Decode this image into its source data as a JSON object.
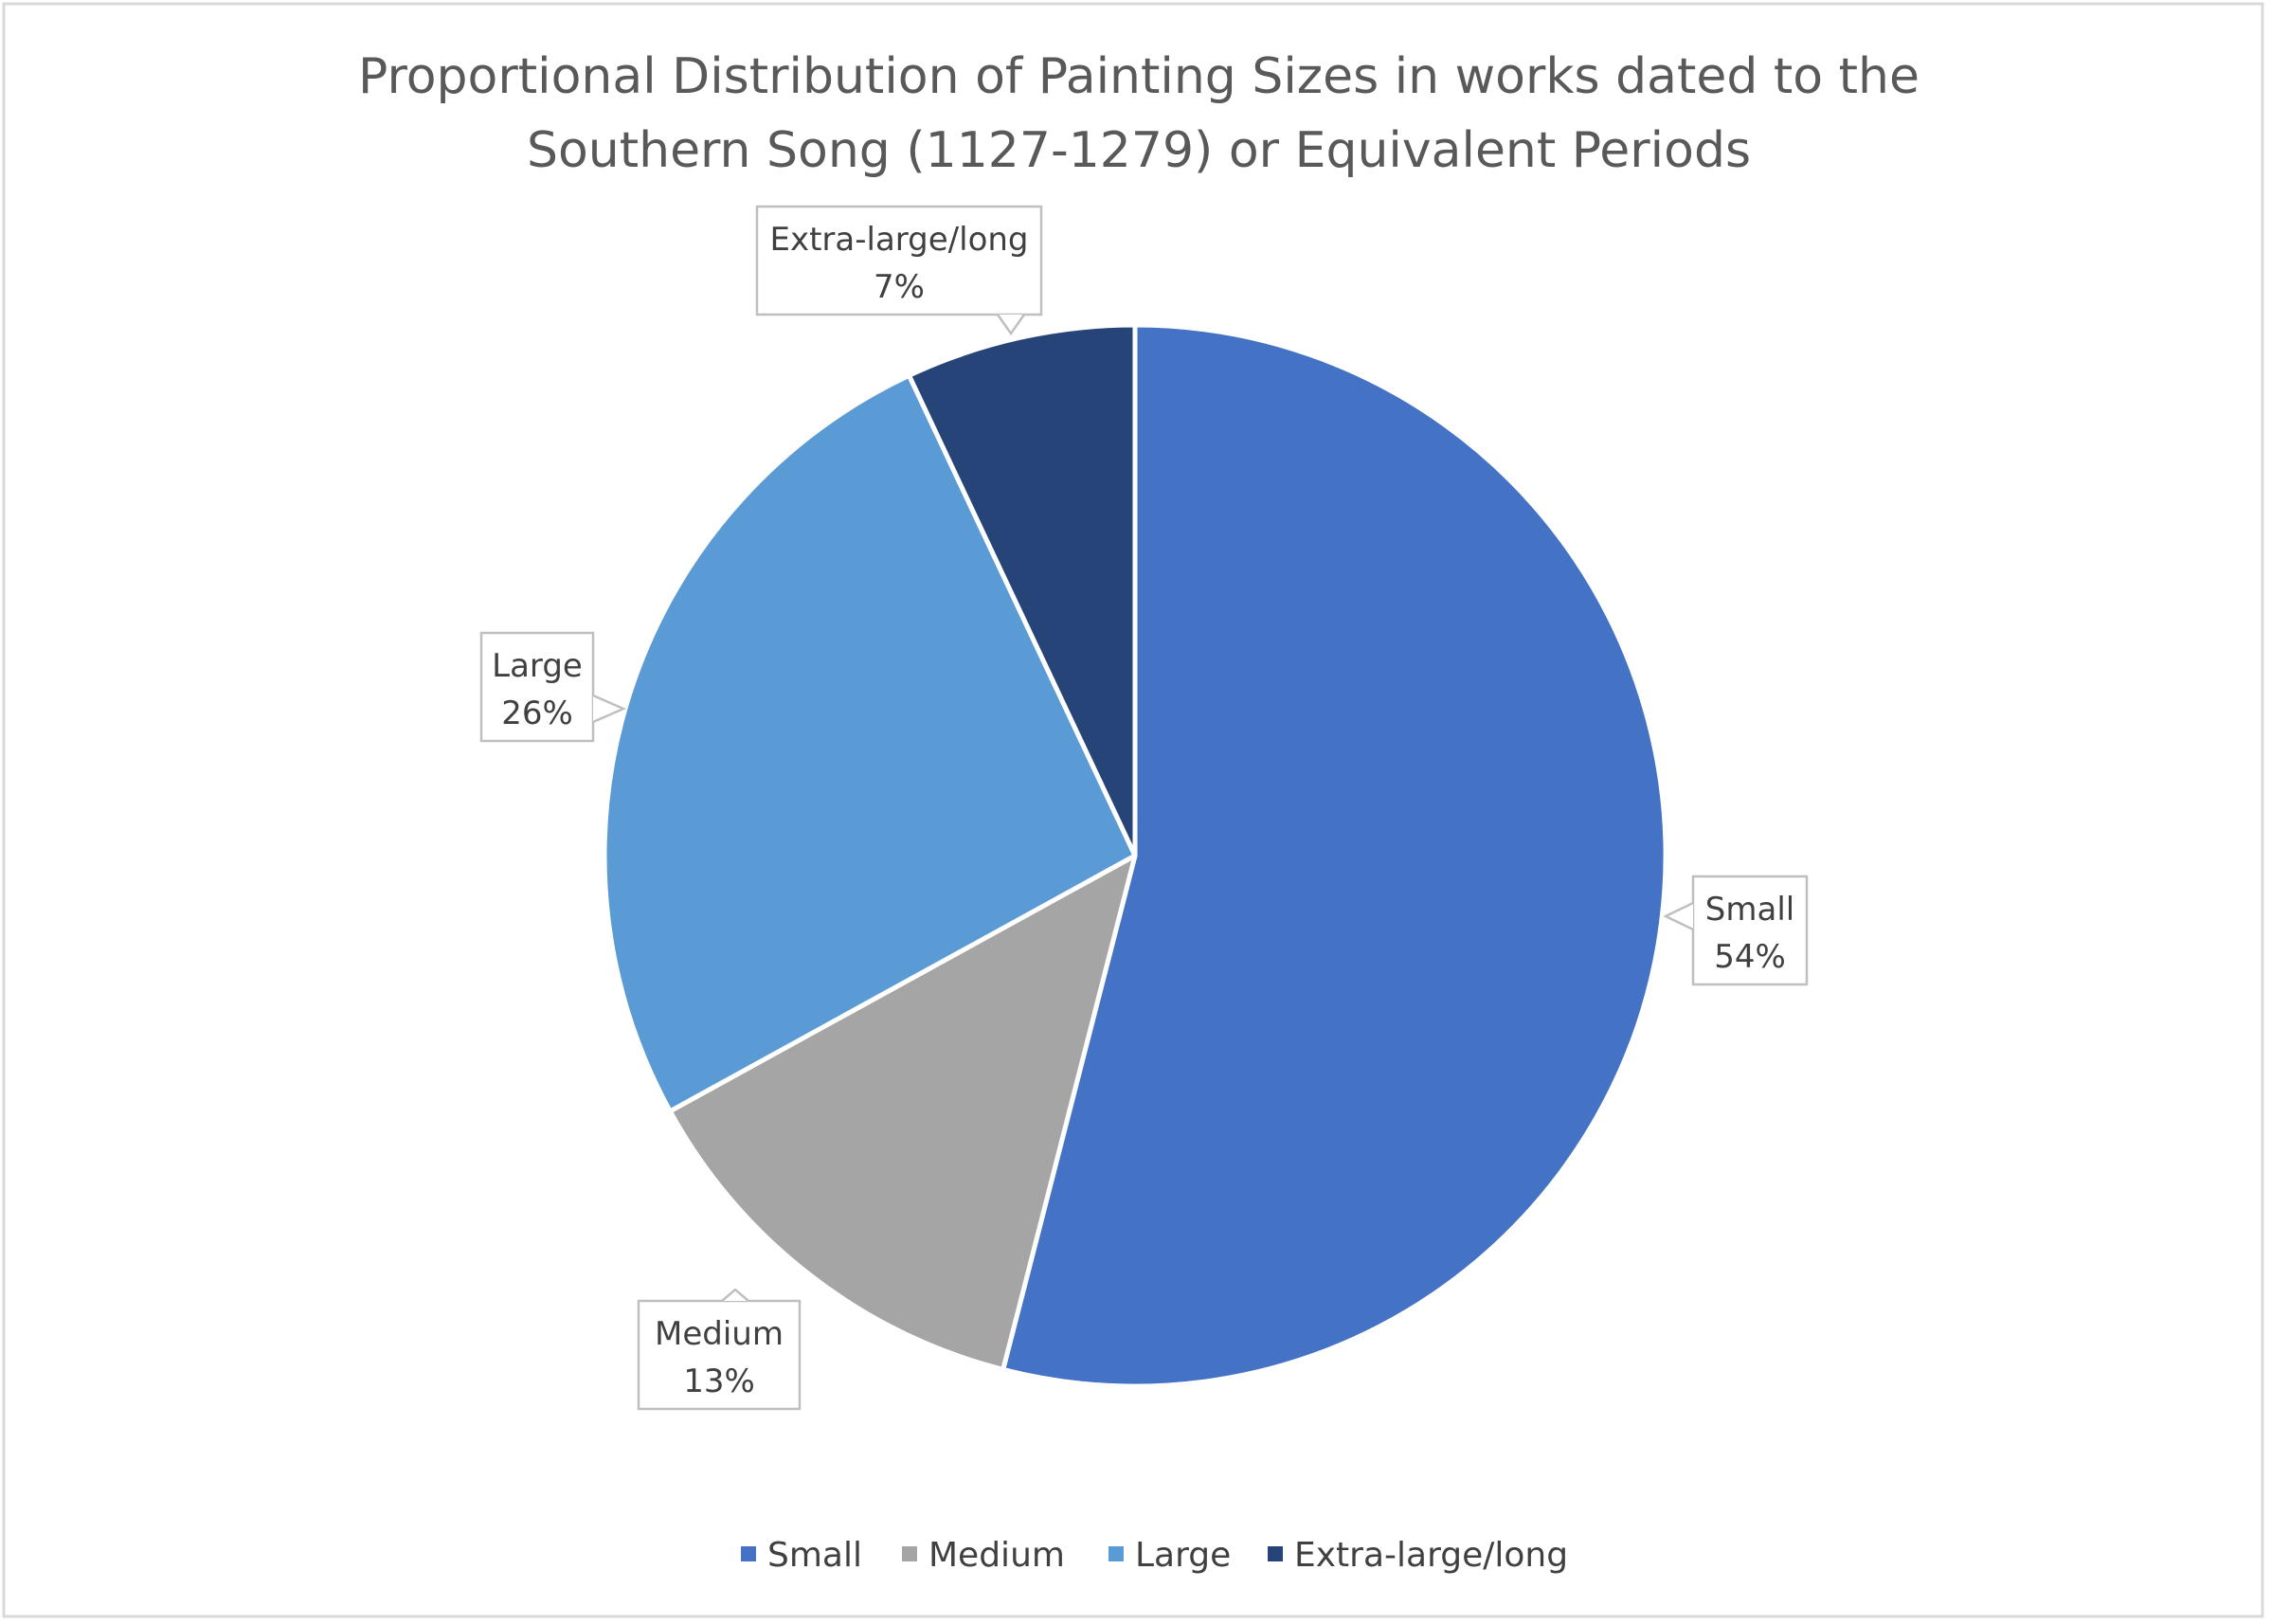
{
  "chart_data": {
    "type": "pie",
    "title": "Proportional Distribution of Painting Sizes in works dated to the Southern Song (1127-1279)  or Equivalent Periods",
    "title_lines": [
      "Proportional Distribution of Painting Sizes in works dated to the",
      "Southern Song (1127-1279)  or Equivalent Periods"
    ],
    "categories": [
      "Small",
      "Medium",
      "Large",
      "Extra-large/long"
    ],
    "values": [
      54,
      13,
      26,
      7
    ],
    "labels": [
      "54%",
      "13%",
      "26%",
      "7%"
    ],
    "colors": [
      "#4472C4",
      "#A5A5A5",
      "#5B9BD5",
      "#264478"
    ],
    "start_angle_deg": 0,
    "direction": "clockwise",
    "legend_position": "bottom",
    "data_labels": "callouts"
  }
}
